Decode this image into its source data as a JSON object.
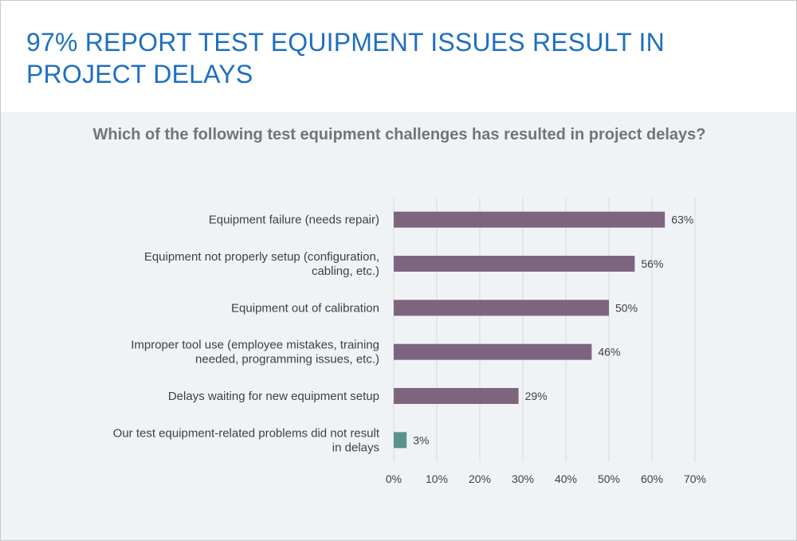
{
  "slide": {
    "title": "97% REPORT TEST EQUIPMENT ISSUES RESULT IN PROJECT DELAYS"
  },
  "colors": {
    "title": "#1f6fbf",
    "background_panel": "#eff3f6",
    "bar_primary": "#7d6580",
    "bar_highlight": "#5b928c",
    "gridline": "#d9d9d9",
    "text": "#404040"
  },
  "chart_data": {
    "type": "bar",
    "orientation": "horizontal",
    "title": "Which of the following test equipment challenges has resulted in project delays?",
    "categories": [
      [
        "Equipment failure (needs repair)"
      ],
      [
        "Equipment not properly setup (configuration,",
        "cabling, etc.)"
      ],
      [
        "Equipment out of calibration"
      ],
      [
        "Improper tool use (employee mistakes, training",
        "needed, programming issues, etc.)"
      ],
      [
        "Delays waiting for new equipment setup"
      ],
      [
        "Our test equipment-related problems did not result",
        "in delays"
      ]
    ],
    "values": [
      63,
      56,
      50,
      46,
      29,
      3
    ],
    "data_labels": [
      "63%",
      "56%",
      "50%",
      "46%",
      "29%",
      "3%"
    ],
    "highlight_index": 5,
    "xlim": [
      0,
      70
    ],
    "xticks": [
      0,
      10,
      20,
      30,
      40,
      50,
      60,
      70
    ],
    "xtick_labels": [
      "0%",
      "10%",
      "20%",
      "30%",
      "40%",
      "50%",
      "60%",
      "70%"
    ],
    "xlabel": "",
    "ylabel": "",
    "grid": true,
    "legend": "none"
  }
}
